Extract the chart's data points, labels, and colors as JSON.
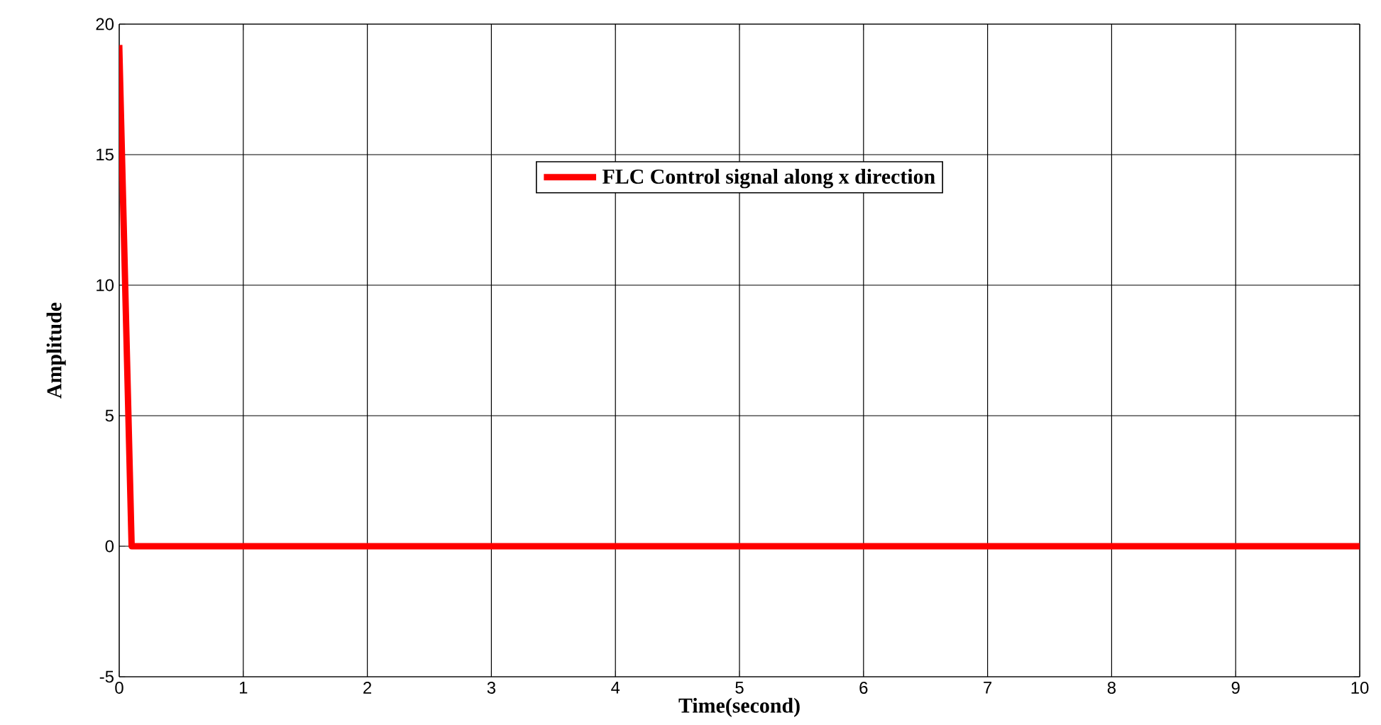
{
  "chart_data": {
    "type": "line",
    "xlabel": "Time(second)",
    "ylabel": "Amplitude",
    "x": [
      0,
      0.1,
      10
    ],
    "series": [
      {
        "name": "FLC Control signal along x direction",
        "color": "#ff0000",
        "values": [
          19.2,
          0,
          0
        ]
      }
    ],
    "xlim": [
      0,
      10
    ],
    "ylim": [
      -5,
      20
    ],
    "xticks": [
      0,
      1,
      2,
      3,
      4,
      5,
      6,
      7,
      8,
      9,
      10
    ],
    "yticks": [
      -5,
      0,
      5,
      10,
      15,
      20
    ],
    "grid": true,
    "legend": "top",
    "marker": "none",
    "line_style": "solid"
  }
}
